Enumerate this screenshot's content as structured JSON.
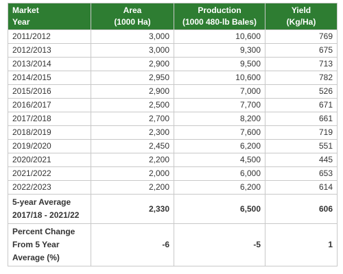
{
  "header": {
    "market": [
      "Market",
      "Year"
    ],
    "area": [
      "Area",
      "(1000 Ha)"
    ],
    "production": [
      "Production",
      "(1000 480-lb Bales)"
    ],
    "yield": [
      "Yield",
      "(Kg/Ha)"
    ]
  },
  "rows": [
    {
      "year": "2011/2012",
      "area": "3,000",
      "production": "10,600",
      "yield": "769"
    },
    {
      "year": "2012/2013",
      "area": "3,000",
      "production": "9,300",
      "yield": "675"
    },
    {
      "year": "2013/2014",
      "area": "2,900",
      "production": "9,500",
      "yield": "713"
    },
    {
      "year": "2014/2015",
      "area": "2,950",
      "production": "10,600",
      "yield": "782"
    },
    {
      "year": "2015/2016",
      "area": "2,900",
      "production": "7,000",
      "yield": "526"
    },
    {
      "year": "2016/2017",
      "area": "2,500",
      "production": "7,700",
      "yield": "671"
    },
    {
      "year": "2017/2018",
      "area": "2,700",
      "production": "8,200",
      "yield": "661"
    },
    {
      "year": "2018/2019",
      "area": "2,300",
      "production": "7,600",
      "yield": "719"
    },
    {
      "year": "2019/2020",
      "area": "2,450",
      "production": "6,200",
      "yield": "551"
    },
    {
      "year": "2020/2021",
      "area": "2,200",
      "production": "4,500",
      "yield": "445"
    },
    {
      "year": "2021/2022",
      "area": "2,000",
      "production": "6,000",
      "yield": "653"
    },
    {
      "year": "2022/2023",
      "area": "2,200",
      "production": "6,200",
      "yield": "614"
    }
  ],
  "average": {
    "label": [
      "5-year Average",
      "2017/18 - 2021/22"
    ],
    "area": "2,330",
    "production": "6,500",
    "yield": "606"
  },
  "change": {
    "label": [
      "Percent Change",
      "From 5 Year",
      "Average (%)"
    ],
    "area": "-6",
    "production": "-5",
    "yield": "1"
  },
  "colors": {
    "header_bg": "#2e7d32",
    "header_text": "#ffffff",
    "border": "#c8c8c8"
  }
}
